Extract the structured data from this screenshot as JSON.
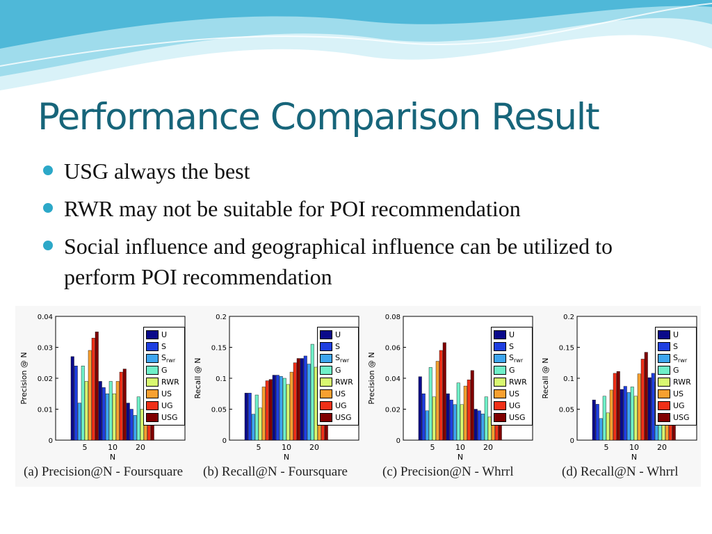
{
  "slide": {
    "title": "Performance Comparison Result",
    "bullets": [
      "USG always the best",
      "RWR may not be suitable for POI recommendation",
      "Social influence and geographical influence can be utilized to perform POI recommendation"
    ]
  },
  "colors": {
    "title": "#17657a",
    "bullet": "#2ca8c8",
    "wave_light": "#d9f2f8",
    "wave_mid": "#9fdcec",
    "wave_dark": "#4fb8d8"
  },
  "legend_colors": [
    "#0a0a8a",
    "#1f3fe0",
    "#3ea6f0",
    "#6ff0c8",
    "#d8f870",
    "#f8a030",
    "#f03018",
    "#800000"
  ],
  "chart_data": [
    {
      "type": "bar",
      "caption": "(a) Precision@N - Foursquare",
      "xlabel": "N",
      "ylabel": "Precision @ N",
      "categories": [
        "5",
        "10",
        "20"
      ],
      "ylim": [
        0,
        0.04
      ],
      "yticks": [
        "0",
        "0.01",
        "0.02",
        "0.03",
        "0.04"
      ],
      "series": [
        {
          "name": "U",
          "values": [
            0.027,
            0.019,
            0.012
          ]
        },
        {
          "name": "S",
          "values": [
            0.024,
            0.017,
            0.01
          ]
        },
        {
          "name": "S_rwr",
          "values": [
            0.012,
            0.015,
            0.008
          ]
        },
        {
          "name": "G",
          "values": [
            0.024,
            0.019,
            0.014
          ]
        },
        {
          "name": "RWR",
          "values": [
            0.019,
            0.015,
            0.01
          ]
        },
        {
          "name": "US",
          "values": [
            0.029,
            0.019,
            0.013
          ]
        },
        {
          "name": "UG",
          "values": [
            0.033,
            0.022,
            0.014
          ]
        },
        {
          "name": "USG",
          "values": [
            0.035,
            0.023,
            0.016
          ]
        }
      ]
    },
    {
      "type": "bar",
      "caption": "(b) Recall@N - Foursquare",
      "xlabel": "N",
      "ylabel": "Recall @ N",
      "categories": [
        "5",
        "10",
        "20"
      ],
      "ylim": [
        0,
        0.2
      ],
      "yticks": [
        "0",
        "0.05",
        "0.1",
        "0.15",
        "0.2"
      ],
      "series": [
        {
          "name": "U",
          "values": [
            0.076,
            0.105,
            0.132
          ]
        },
        {
          "name": "S",
          "values": [
            0.076,
            0.105,
            0.136
          ]
        },
        {
          "name": "S_rwr",
          "values": [
            0.042,
            0.103,
            0.123
          ]
        },
        {
          "name": "G",
          "values": [
            0.073,
            0.1,
            0.155
          ]
        },
        {
          "name": "RWR",
          "values": [
            0.052,
            0.09,
            0.118
          ]
        },
        {
          "name": "US",
          "values": [
            0.086,
            0.11,
            0.146
          ]
        },
        {
          "name": "UG",
          "values": [
            0.096,
            0.125,
            0.158
          ]
        },
        {
          "name": "USG",
          "values": [
            0.098,
            0.132,
            0.172
          ]
        }
      ]
    },
    {
      "type": "bar",
      "caption": "(c) Precision@N - Whrrl",
      "xlabel": "N",
      "ylabel": "Precision @ N",
      "categories": [
        "5",
        "10",
        "20"
      ],
      "ylim": [
        0,
        0.08
      ],
      "yticks": [
        "0",
        "0.02",
        "0.04",
        "0.06",
        "0.08"
      ],
      "series": [
        {
          "name": "U",
          "values": [
            0.041,
            0.03,
            0.02
          ]
        },
        {
          "name": "S",
          "values": [
            0.03,
            0.026,
            0.019
          ]
        },
        {
          "name": "S_rwr",
          "values": [
            0.019,
            0.023,
            0.017
          ]
        },
        {
          "name": "G",
          "values": [
            0.047,
            0.037,
            0.028
          ]
        },
        {
          "name": "RWR",
          "values": [
            0.028,
            0.023,
            0.015
          ]
        },
        {
          "name": "US",
          "values": [
            0.051,
            0.035,
            0.024
          ]
        },
        {
          "name": "UG",
          "values": [
            0.058,
            0.039,
            0.028
          ]
        },
        {
          "name": "USG",
          "values": [
            0.063,
            0.045,
            0.031
          ]
        }
      ]
    },
    {
      "type": "bar",
      "caption": "(d) Recall@N - Whrrl",
      "xlabel": "N",
      "ylabel": "Recall @ N",
      "categories": [
        "5",
        "10",
        "20"
      ],
      "ylim": [
        0,
        0.2
      ],
      "yticks": [
        "0",
        "0.05",
        "0.1",
        "0.15",
        "0.2"
      ],
      "series": [
        {
          "name": "U",
          "values": [
            0.065,
            0.082,
            0.101
          ]
        },
        {
          "name": "S",
          "values": [
            0.058,
            0.087,
            0.108
          ]
        },
        {
          "name": "S_rwr",
          "values": [
            0.035,
            0.077,
            0.094
          ]
        },
        {
          "name": "G",
          "values": [
            0.071,
            0.086,
            0.121
          ]
        },
        {
          "name": "RWR",
          "values": [
            0.044,
            0.071,
            0.088
          ]
        },
        {
          "name": "US",
          "values": [
            0.081,
            0.107,
            0.134
          ]
        },
        {
          "name": "UG",
          "values": [
            0.108,
            0.131,
            0.155
          ]
        },
        {
          "name": "USG",
          "values": [
            0.111,
            0.142,
            0.166
          ]
        }
      ]
    }
  ]
}
